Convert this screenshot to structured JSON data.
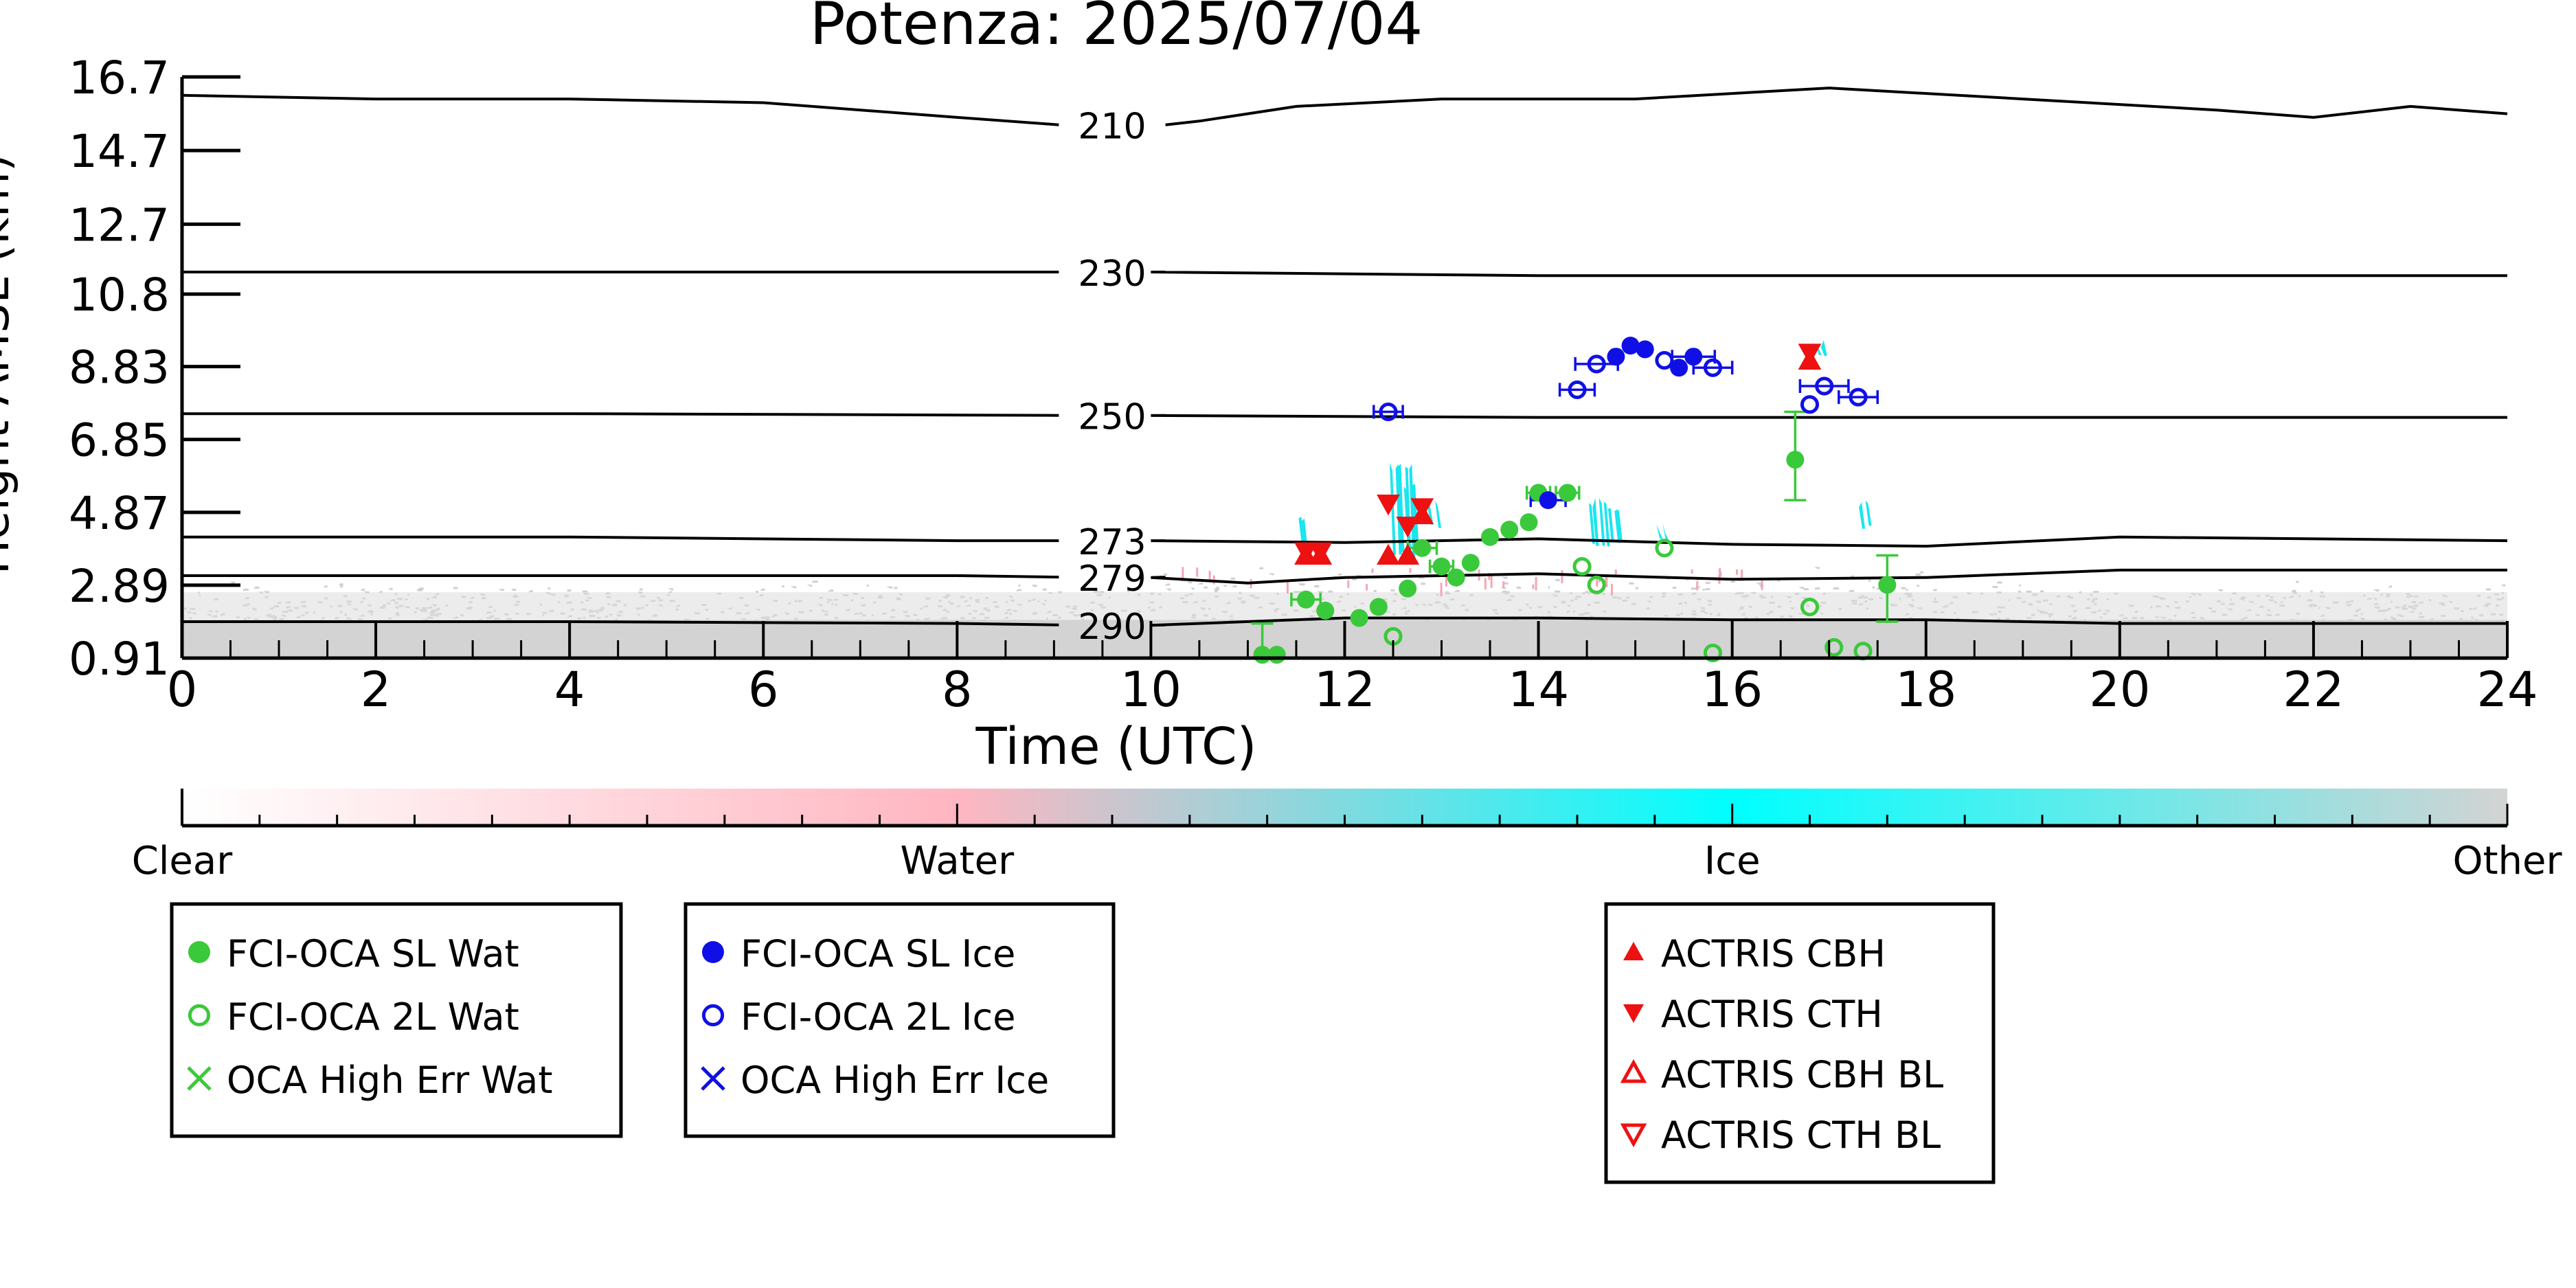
{
  "chart_data": {
    "type": "scatter",
    "title": "Potenza: 2025/07/04",
    "xlabel": "Time (UTC)",
    "ylabel": "Height AMSL (km)",
    "xlim": [
      0,
      24
    ],
    "ylim": [
      0.91,
      16.7
    ],
    "x_ticks": [
      0,
      2,
      4,
      6,
      8,
      10,
      12,
      14,
      16,
      18,
      20,
      22,
      24
    ],
    "y_ticks": [
      "16.7",
      "14.7",
      "12.7",
      "10.8",
      "8.83",
      "6.85",
      "4.87",
      "2.89",
      "0.91"
    ],
    "grid": false,
    "temperature_isolines": [
      {
        "label": "210",
        "points": [
          [
            0,
            16.2
          ],
          [
            2,
            16.1
          ],
          [
            4,
            16.1
          ],
          [
            6,
            16.0
          ],
          [
            8,
            15.6
          ],
          [
            9.6,
            15.4
          ],
          [
            10.5,
            15.5
          ],
          [
            11.5,
            15.9
          ],
          [
            13,
            16.1
          ],
          [
            15,
            16.1
          ],
          [
            17,
            16.4
          ],
          [
            19,
            16.1
          ],
          [
            21,
            15.8
          ],
          [
            22,
            15.6
          ],
          [
            23,
            15.9
          ],
          [
            24,
            15.7
          ]
        ]
      },
      {
        "label": "230",
        "points": [
          [
            0,
            11.4
          ],
          [
            6,
            11.4
          ],
          [
            10,
            11.4
          ],
          [
            14,
            11.3
          ],
          [
            18,
            11.3
          ],
          [
            24,
            11.3
          ]
        ]
      },
      {
        "label": "250",
        "points": [
          [
            0,
            7.55
          ],
          [
            4,
            7.55
          ],
          [
            10,
            7.5
          ],
          [
            14,
            7.45
          ],
          [
            18,
            7.45
          ],
          [
            24,
            7.45
          ]
        ]
      },
      {
        "label": "273",
        "points": [
          [
            0,
            4.2
          ],
          [
            4,
            4.2
          ],
          [
            8,
            4.1
          ],
          [
            10,
            4.1
          ],
          [
            12,
            4.05
          ],
          [
            14,
            4.15
          ],
          [
            16,
            4.0
          ],
          [
            18,
            3.95
          ],
          [
            20,
            4.2
          ],
          [
            22,
            4.15
          ],
          [
            24,
            4.1
          ]
        ]
      },
      {
        "label": "279",
        "points": [
          [
            0,
            3.15
          ],
          [
            4,
            3.15
          ],
          [
            8,
            3.15
          ],
          [
            10,
            3.1
          ],
          [
            11,
            2.95
          ],
          [
            12,
            3.1
          ],
          [
            14,
            3.2
          ],
          [
            16,
            3.05
          ],
          [
            18,
            3.1
          ],
          [
            20,
            3.3
          ],
          [
            24,
            3.3
          ]
        ]
      },
      {
        "label": "290",
        "points": [
          [
            0,
            1.9
          ],
          [
            4,
            1.9
          ],
          [
            8,
            1.85
          ],
          [
            10,
            1.8
          ],
          [
            12,
            2.0
          ],
          [
            14,
            2.0
          ],
          [
            16,
            1.95
          ],
          [
            18,
            1.95
          ],
          [
            20,
            1.85
          ],
          [
            24,
            1.85
          ]
        ]
      }
    ],
    "series": [
      {
        "name": "FCI-OCA SL Wat",
        "marker": "filled-circle",
        "color": "#3ac93a",
        "points": [
          [
            11.15,
            1.0
          ],
          [
            11.3,
            1.0
          ],
          [
            11.6,
            2.5
          ],
          [
            11.8,
            2.2
          ],
          [
            12.15,
            2.0
          ],
          [
            12.35,
            2.3
          ],
          [
            12.65,
            2.8
          ],
          [
            12.8,
            3.9
          ],
          [
            13.0,
            3.4
          ],
          [
            13.15,
            3.1
          ],
          [
            13.3,
            3.5
          ],
          [
            13.5,
            4.2
          ],
          [
            13.7,
            4.4
          ],
          [
            13.9,
            4.6
          ],
          [
            14.0,
            5.4
          ],
          [
            14.3,
            5.4
          ],
          [
            16.65,
            6.3
          ],
          [
            17.6,
            2.9
          ]
        ]
      },
      {
        "name": "FCI-OCA 2L Wat",
        "marker": "open-circle",
        "color": "#3ac93a",
        "points": [
          [
            12.5,
            1.5
          ],
          [
            14.45,
            3.4
          ],
          [
            14.6,
            2.9
          ],
          [
            15.3,
            3.9
          ],
          [
            15.8,
            1.05
          ],
          [
            16.8,
            2.3
          ],
          [
            17.05,
            1.2
          ],
          [
            17.35,
            1.1
          ]
        ]
      },
      {
        "name": "OCA High Err Wat",
        "marker": "x",
        "color": "#3ac93a",
        "points": []
      },
      {
        "name": "FCI-OCA SL Ice",
        "marker": "filled-circle",
        "color": "#1010e6",
        "points": [
          [
            14.1,
            5.2
          ],
          [
            14.8,
            9.1
          ],
          [
            14.95,
            9.4
          ],
          [
            15.1,
            9.3
          ],
          [
            15.45,
            8.8
          ],
          [
            15.6,
            9.1
          ]
        ]
      },
      {
        "name": "FCI-OCA 2L Ice",
        "marker": "open-circle",
        "color": "#1010e6",
        "points": [
          [
            12.45,
            7.6
          ],
          [
            14.4,
            8.2
          ],
          [
            14.6,
            8.9
          ],
          [
            15.3,
            9.0
          ],
          [
            15.8,
            8.8
          ],
          [
            16.8,
            7.8
          ],
          [
            16.95,
            8.3
          ],
          [
            17.3,
            8.0
          ]
        ]
      },
      {
        "name": "OCA High Err Ice",
        "marker": "x",
        "color": "#1010e6",
        "points": []
      },
      {
        "name": "ACTRIS CBH",
        "marker": "filled-triangle-up",
        "color": "#ee1111",
        "points": [
          [
            11.6,
            3.7
          ],
          [
            11.75,
            3.7
          ],
          [
            12.45,
            3.7
          ],
          [
            12.65,
            3.7
          ],
          [
            12.8,
            4.8
          ],
          [
            16.8,
            9.0
          ]
        ]
      },
      {
        "name": "ACTRIS CTH",
        "marker": "filled-triangle-down",
        "color": "#ee1111",
        "points": [
          [
            11.6,
            3.8
          ],
          [
            11.75,
            3.8
          ],
          [
            12.45,
            5.1
          ],
          [
            12.65,
            4.5
          ],
          [
            12.8,
            5.0
          ],
          [
            16.8,
            9.2
          ]
        ]
      },
      {
        "name": "ACTRIS CBH BL",
        "marker": "open-triangle-up",
        "color": "#ee1111",
        "points": []
      },
      {
        "name": "ACTRIS CTH BL",
        "marker": "open-triangle-down",
        "color": "#ee1111",
        "points": []
      }
    ],
    "colorbar": {
      "labels": [
        "Clear",
        "Water",
        "Ice",
        "Other"
      ],
      "stops": [
        "#ffffff",
        "#ffb6c1",
        "#00ffff",
        "#d3d3d3"
      ]
    },
    "legend_placement": "below",
    "legend_groups": [
      [
        "FCI-OCA SL Wat",
        "FCI-OCA 2L Wat",
        "OCA High Err Wat"
      ],
      [
        "FCI-OCA SL Ice",
        "FCI-OCA 2L Ice",
        "OCA High Err Ice"
      ],
      [
        "ACTRIS CBH",
        "ACTRIS CTH",
        "ACTRIS CBH BL",
        "ACTRIS CTH BL"
      ]
    ]
  }
}
